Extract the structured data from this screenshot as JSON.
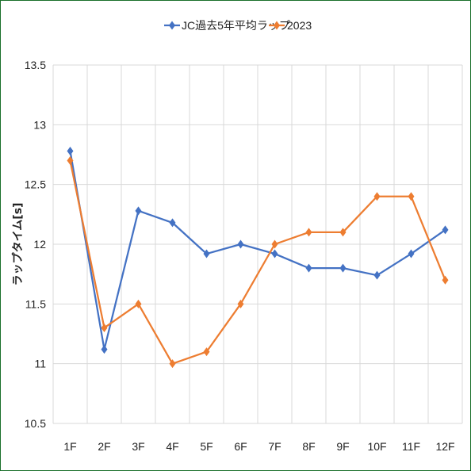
{
  "chart_data": {
    "type": "line",
    "categories": [
      "1F",
      "2F",
      "3F",
      "4F",
      "5F",
      "6F",
      "7F",
      "8F",
      "9F",
      "10F",
      "11F",
      "12F"
    ],
    "series": [
      {
        "name": "JC過去5年平均ラップ",
        "values": [
          12.78,
          11.12,
          12.28,
          12.18,
          11.92,
          12.0,
          11.92,
          11.8,
          11.8,
          11.74,
          11.92,
          12.12
        ],
        "color": "#4472C4",
        "marker": "diamond"
      },
      {
        "name": "2023",
        "values": [
          12.7,
          11.3,
          11.5,
          11.0,
          11.1,
          11.5,
          12.0,
          12.1,
          12.1,
          12.4,
          12.4,
          11.7
        ],
        "color": "#ED7D31",
        "marker": "diamond"
      }
    ],
    "ylabel": "ラップタイム[s]",
    "ylim": [
      10.5,
      13.5
    ],
    "yticks": [
      "10.5",
      "11",
      "11.5",
      "12",
      "12.5",
      "13",
      "13.5"
    ],
    "grid": true,
    "legend": "top"
  }
}
